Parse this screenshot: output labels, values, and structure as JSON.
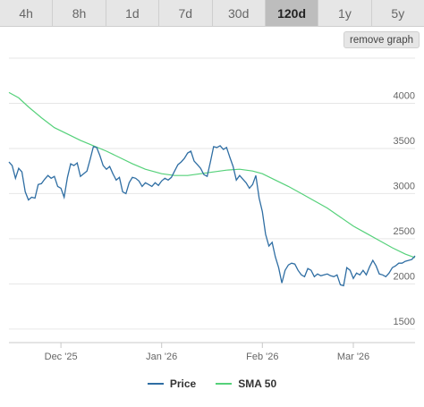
{
  "range_tabs": [
    {
      "label": "4h",
      "active": false
    },
    {
      "label": "8h",
      "active": false
    },
    {
      "label": "1d",
      "active": false
    },
    {
      "label": "7d",
      "active": false
    },
    {
      "label": "30d",
      "active": false
    },
    {
      "label": "120d",
      "active": true
    },
    {
      "label": "1y",
      "active": false
    },
    {
      "label": "5y",
      "active": false
    }
  ],
  "remove_graph_label": "remove graph",
  "colors": {
    "price": "#2f6ea3",
    "sma": "#55d17a",
    "grid": "#e6e6e6",
    "axis_text": "#666666"
  },
  "chart_data": {
    "type": "line",
    "title": "",
    "xlabel": "",
    "ylabel": "",
    "ylim": [
      1350,
      4500
    ],
    "y_ticks": [
      1500,
      2000,
      2500,
      3000,
      3500,
      4000
    ],
    "x_range": [
      "2025-11-15",
      "2026-03-20"
    ],
    "x_ticks": [
      {
        "date": "2025-12-01",
        "label": "Dec '25"
      },
      {
        "date": "2026-01-01",
        "label": "Jan '26"
      },
      {
        "date": "2026-02-01",
        "label": "Feb '26"
      },
      {
        "date": "2026-03-01",
        "label": "Mar '26"
      }
    ],
    "legend_position": "bottom-center",
    "grid": true,
    "series": [
      {
        "name": "Price",
        "color": "#2f6ea3",
        "points": [
          [
            "2025-11-15",
            3350
          ],
          [
            "2025-11-16",
            3310
          ],
          [
            "2025-11-17",
            3170
          ],
          [
            "2025-11-18",
            3280
          ],
          [
            "2025-11-19",
            3240
          ],
          [
            "2025-11-20",
            3020
          ],
          [
            "2025-11-21",
            2930
          ],
          [
            "2025-11-22",
            2960
          ],
          [
            "2025-11-23",
            2950
          ],
          [
            "2025-11-24",
            3100
          ],
          [
            "2025-11-25",
            3110
          ],
          [
            "2025-11-26",
            3160
          ],
          [
            "2025-11-27",
            3200
          ],
          [
            "2025-11-28",
            3170
          ],
          [
            "2025-11-29",
            3190
          ],
          [
            "2025-11-30",
            3080
          ],
          [
            "2025-12-01",
            3060
          ],
          [
            "2025-12-02",
            2960
          ],
          [
            "2025-12-03",
            3180
          ],
          [
            "2025-12-04",
            3330
          ],
          [
            "2025-12-05",
            3310
          ],
          [
            "2025-12-06",
            3340
          ],
          [
            "2025-12-07",
            3190
          ],
          [
            "2025-12-08",
            3220
          ],
          [
            "2025-12-09",
            3250
          ],
          [
            "2025-12-10",
            3380
          ],
          [
            "2025-12-11",
            3520
          ],
          [
            "2025-12-12",
            3510
          ],
          [
            "2025-12-13",
            3420
          ],
          [
            "2025-12-14",
            3310
          ],
          [
            "2025-12-15",
            3270
          ],
          [
            "2025-12-16",
            3300
          ],
          [
            "2025-12-17",
            3220
          ],
          [
            "2025-12-18",
            3150
          ],
          [
            "2025-12-19",
            3180
          ],
          [
            "2025-12-20",
            3020
          ],
          [
            "2025-12-21",
            3000
          ],
          [
            "2025-12-22",
            3120
          ],
          [
            "2025-12-23",
            3180
          ],
          [
            "2025-12-24",
            3170
          ],
          [
            "2025-12-25",
            3140
          ],
          [
            "2025-12-26",
            3080
          ],
          [
            "2025-12-27",
            3120
          ],
          [
            "2025-12-28",
            3100
          ],
          [
            "2025-12-29",
            3080
          ],
          [
            "2025-12-30",
            3120
          ],
          [
            "2025-12-31",
            3090
          ],
          [
            "2026-01-01",
            3140
          ],
          [
            "2026-01-02",
            3170
          ],
          [
            "2026-01-03",
            3150
          ],
          [
            "2026-01-04",
            3180
          ],
          [
            "2026-01-05",
            3250
          ],
          [
            "2026-01-06",
            3320
          ],
          [
            "2026-01-07",
            3350
          ],
          [
            "2026-01-08",
            3390
          ],
          [
            "2026-01-09",
            3450
          ],
          [
            "2026-01-10",
            3470
          ],
          [
            "2026-01-11",
            3360
          ],
          [
            "2026-01-12",
            3320
          ],
          [
            "2026-01-13",
            3280
          ],
          [
            "2026-01-14",
            3210
          ],
          [
            "2026-01-15",
            3190
          ],
          [
            "2026-01-16",
            3350
          ],
          [
            "2026-01-17",
            3520
          ],
          [
            "2026-01-18",
            3510
          ],
          [
            "2026-01-19",
            3530
          ],
          [
            "2026-01-20",
            3490
          ],
          [
            "2026-01-21",
            3510
          ],
          [
            "2026-01-22",
            3400
          ],
          [
            "2026-01-23",
            3300
          ],
          [
            "2026-01-24",
            3150
          ],
          [
            "2026-01-25",
            3200
          ],
          [
            "2026-01-26",
            3160
          ],
          [
            "2026-01-27",
            3120
          ],
          [
            "2026-01-28",
            3060
          ],
          [
            "2026-01-29",
            3100
          ],
          [
            "2026-01-30",
            3200
          ],
          [
            "2026-01-31",
            2950
          ],
          [
            "2026-02-01",
            2800
          ],
          [
            "2026-02-02",
            2550
          ],
          [
            "2026-02-03",
            2420
          ],
          [
            "2026-02-04",
            2460
          ],
          [
            "2026-02-05",
            2300
          ],
          [
            "2026-02-06",
            2180
          ],
          [
            "2026-02-07",
            2010
          ],
          [
            "2026-02-08",
            2150
          ],
          [
            "2026-02-09",
            2210
          ],
          [
            "2026-02-10",
            2230
          ],
          [
            "2026-02-11",
            2220
          ],
          [
            "2026-02-12",
            2150
          ],
          [
            "2026-02-13",
            2100
          ],
          [
            "2026-02-14",
            2080
          ],
          [
            "2026-02-15",
            2170
          ],
          [
            "2026-02-16",
            2150
          ],
          [
            "2026-02-17",
            2080
          ],
          [
            "2026-02-18",
            2110
          ],
          [
            "2026-02-19",
            2090
          ],
          [
            "2026-02-20",
            2100
          ],
          [
            "2026-02-21",
            2110
          ],
          [
            "2026-02-22",
            2090
          ],
          [
            "2026-02-23",
            2080
          ],
          [
            "2026-02-24",
            2100
          ],
          [
            "2026-02-25",
            1990
          ],
          [
            "2026-02-26",
            1980
          ],
          [
            "2026-02-27",
            2180
          ],
          [
            "2026-02-28",
            2150
          ],
          [
            "2026-03-01",
            2060
          ],
          [
            "2026-03-02",
            2120
          ],
          [
            "2026-03-03",
            2100
          ],
          [
            "2026-03-04",
            2150
          ],
          [
            "2026-03-05",
            2100
          ],
          [
            "2026-03-06",
            2190
          ],
          [
            "2026-03-07",
            2260
          ],
          [
            "2026-03-08",
            2200
          ],
          [
            "2026-03-09",
            2110
          ],
          [
            "2026-03-10",
            2100
          ],
          [
            "2026-03-11",
            2080
          ],
          [
            "2026-03-12",
            2120
          ],
          [
            "2026-03-13",
            2180
          ],
          [
            "2026-03-14",
            2200
          ],
          [
            "2026-03-15",
            2230
          ],
          [
            "2026-03-16",
            2230
          ],
          [
            "2026-03-17",
            2250
          ],
          [
            "2026-03-18",
            2260
          ],
          [
            "2026-03-19",
            2270
          ],
          [
            "2026-03-20",
            2310
          ]
        ]
      },
      {
        "name": "SMA 50",
        "color": "#55d17a",
        "points": [
          [
            "2025-11-15",
            4120
          ],
          [
            "2025-11-18",
            4060
          ],
          [
            "2025-11-21",
            3960
          ],
          [
            "2025-11-25",
            3840
          ],
          [
            "2025-11-29",
            3730
          ],
          [
            "2025-12-03",
            3660
          ],
          [
            "2025-12-07",
            3590
          ],
          [
            "2025-12-11",
            3530
          ],
          [
            "2025-12-15",
            3470
          ],
          [
            "2025-12-19",
            3400
          ],
          [
            "2025-12-23",
            3330
          ],
          [
            "2025-12-27",
            3270
          ],
          [
            "2026-01-01",
            3220
          ],
          [
            "2026-01-05",
            3200
          ],
          [
            "2026-01-09",
            3200
          ],
          [
            "2026-01-13",
            3220
          ],
          [
            "2026-01-17",
            3240
          ],
          [
            "2026-01-21",
            3260
          ],
          [
            "2026-01-25",
            3270
          ],
          [
            "2026-01-29",
            3250
          ],
          [
            "2026-02-01",
            3220
          ],
          [
            "2026-02-05",
            3150
          ],
          [
            "2026-02-09",
            3080
          ],
          [
            "2026-02-13",
            3000
          ],
          [
            "2026-02-17",
            2920
          ],
          [
            "2026-02-21",
            2840
          ],
          [
            "2026-02-25",
            2740
          ],
          [
            "2026-03-01",
            2640
          ],
          [
            "2026-03-05",
            2560
          ],
          [
            "2026-03-09",
            2480
          ],
          [
            "2026-03-13",
            2400
          ],
          [
            "2026-03-17",
            2330
          ],
          [
            "2026-03-20",
            2290
          ]
        ]
      }
    ]
  }
}
